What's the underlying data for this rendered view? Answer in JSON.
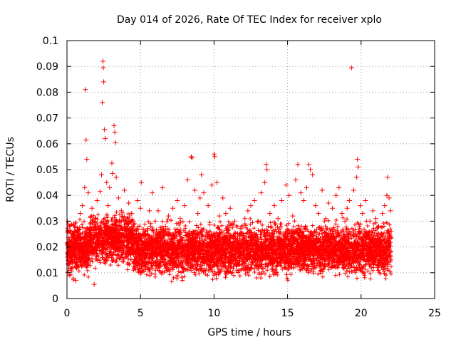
{
  "chart_data": {
    "type": "scatter",
    "title": "Day 014 of 2026, Rate Of TEC Index for receiver xplo",
    "xlabel": "GPS time / hours",
    "ylabel": "ROTI / TECUs",
    "xlim": [
      0,
      25
    ],
    "ylim": [
      0,
      0.1
    ],
    "xticks": [
      "0",
      "5",
      "10",
      "15",
      "20",
      "25"
    ],
    "yticks": [
      "0",
      "0.01",
      "0.02",
      "0.03",
      "0.04",
      "0.05",
      "0.06",
      "0.07",
      "0.08",
      "0.09",
      "0.1"
    ],
    "grid": true,
    "marker": "+",
    "color": "#ff0000",
    "series": [
      {
        "points": [
          [
            0.1,
            0.021
          ],
          [
            0.15,
            0.009
          ],
          [
            0.2,
            0.026
          ],
          [
            0.35,
            0.014
          ],
          [
            0.5,
            0.019
          ],
          [
            0.55,
            0.029
          ],
          [
            0.6,
            0.007
          ],
          [
            0.75,
            0.023
          ],
          [
            0.9,
            0.033
          ],
          [
            1.0,
            0.017
          ],
          [
            1.05,
            0.036
          ],
          [
            1.2,
            0.043
          ],
          [
            1.25,
            0.081
          ],
          [
            1.3,
            0.0615
          ],
          [
            1.35,
            0.054
          ],
          [
            1.45,
            0.041
          ],
          [
            1.55,
            0.024
          ],
          [
            1.7,
            0.035
          ],
          [
            1.85,
            0.0055
          ],
          [
            1.95,
            0.031
          ],
          [
            2.05,
            0.038
          ],
          [
            2.1,
            0.028
          ],
          [
            2.25,
            0.0415
          ],
          [
            2.35,
            0.048
          ],
          [
            2.4,
            0.076
          ],
          [
            2.45,
            0.092
          ],
          [
            2.47,
            0.0895
          ],
          [
            2.5,
            0.084
          ],
          [
            2.55,
            0.0655
          ],
          [
            2.6,
            0.062
          ],
          [
            2.7,
            0.045
          ],
          [
            2.8,
            0.036
          ],
          [
            2.9,
            0.043
          ],
          [
            3.05,
            0.0525
          ],
          [
            3.1,
            0.0485
          ],
          [
            3.2,
            0.067
          ],
          [
            3.25,
            0.0645
          ],
          [
            3.3,
            0.0605
          ],
          [
            3.35,
            0.047
          ],
          [
            3.5,
            0.039
          ],
          [
            3.7,
            0.034
          ],
          [
            3.9,
            0.042
          ],
          [
            4.1,
            0.031
          ],
          [
            4.2,
            0.037
          ],
          [
            4.4,
            0.033
          ],
          [
            4.6,
            0.029
          ],
          [
            4.8,
            0.038
          ],
          [
            5.0,
            0.035
          ],
          [
            5.05,
            0.045
          ],
          [
            5.3,
            0.026
          ],
          [
            5.6,
            0.034
          ],
          [
            5.8,
            0.041
          ],
          [
            6.0,
            0.03
          ],
          [
            6.2,
            0.034
          ],
          [
            6.5,
            0.043
          ],
          [
            6.7,
            0.028
          ],
          [
            6.9,
            0.032
          ],
          [
            7.2,
            0.035
          ],
          [
            7.5,
            0.038
          ],
          [
            7.7,
            0.031
          ],
          [
            8.0,
            0.036
          ],
          [
            8.2,
            0.046
          ],
          [
            8.45,
            0.055
          ],
          [
            8.5,
            0.0545
          ],
          [
            8.7,
            0.042
          ],
          [
            8.9,
            0.033
          ],
          [
            9.05,
            0.039
          ],
          [
            9.15,
            0.048
          ],
          [
            9.3,
            0.041
          ],
          [
            9.6,
            0.036
          ],
          [
            9.85,
            0.044
          ],
          [
            10.0,
            0.056
          ],
          [
            10.05,
            0.055
          ],
          [
            10.2,
            0.045
          ],
          [
            10.35,
            0.032
          ],
          [
            10.6,
            0.039
          ],
          [
            10.8,
            0.033
          ],
          [
            11.1,
            0.035
          ],
          [
            11.4,
            0.03
          ],
          [
            11.6,
            0.025
          ],
          [
            11.9,
            0.028
          ],
          [
            12.1,
            0.031
          ],
          [
            12.3,
            0.034
          ],
          [
            12.5,
            0.036
          ],
          [
            12.75,
            0.038
          ],
          [
            13.0,
            0.03
          ],
          [
            13.2,
            0.041
          ],
          [
            13.45,
            0.045
          ],
          [
            13.55,
            0.052
          ],
          [
            13.6,
            0.05
          ],
          [
            13.8,
            0.033
          ],
          [
            14.1,
            0.036
          ],
          [
            14.35,
            0.031
          ],
          [
            14.6,
            0.038
          ],
          [
            14.9,
            0.044
          ],
          [
            15.1,
            0.04
          ],
          [
            15.35,
            0.032
          ],
          [
            15.55,
            0.046
          ],
          [
            15.7,
            0.052
          ],
          [
            15.9,
            0.041
          ],
          [
            16.1,
            0.038
          ],
          [
            16.3,
            0.043
          ],
          [
            16.45,
            0.052
          ],
          [
            16.55,
            0.05
          ],
          [
            16.7,
            0.048
          ],
          [
            16.9,
            0.036
          ],
          [
            17.1,
            0.033
          ],
          [
            17.35,
            0.042
          ],
          [
            17.6,
            0.031
          ],
          [
            17.8,
            0.037
          ],
          [
            18.05,
            0.035
          ],
          [
            18.3,
            0.04
          ],
          [
            18.5,
            0.043
          ],
          [
            18.7,
            0.033
          ],
          [
            18.9,
            0.03
          ],
          [
            19.05,
            0.035
          ],
          [
            19.2,
            0.038
          ],
          [
            19.35,
            0.0895
          ],
          [
            19.5,
            0.042
          ],
          [
            19.7,
            0.047
          ],
          [
            19.75,
            0.054
          ],
          [
            19.8,
            0.051
          ],
          [
            19.95,
            0.036
          ],
          [
            20.1,
            0.033
          ],
          [
            20.3,
            0.038
          ],
          [
            20.6,
            0.03
          ],
          [
            20.8,
            0.034
          ],
          [
            21.0,
            0.031
          ],
          [
            21.2,
            0.028
          ],
          [
            21.45,
            0.033
          ],
          [
            21.6,
            0.036
          ],
          [
            21.75,
            0.04
          ],
          [
            21.8,
            0.047
          ],
          [
            21.9,
            0.039
          ],
          [
            22.0,
            0.034
          ],
          [
            22.05,
            0.026
          ]
        ]
      }
    ]
  }
}
